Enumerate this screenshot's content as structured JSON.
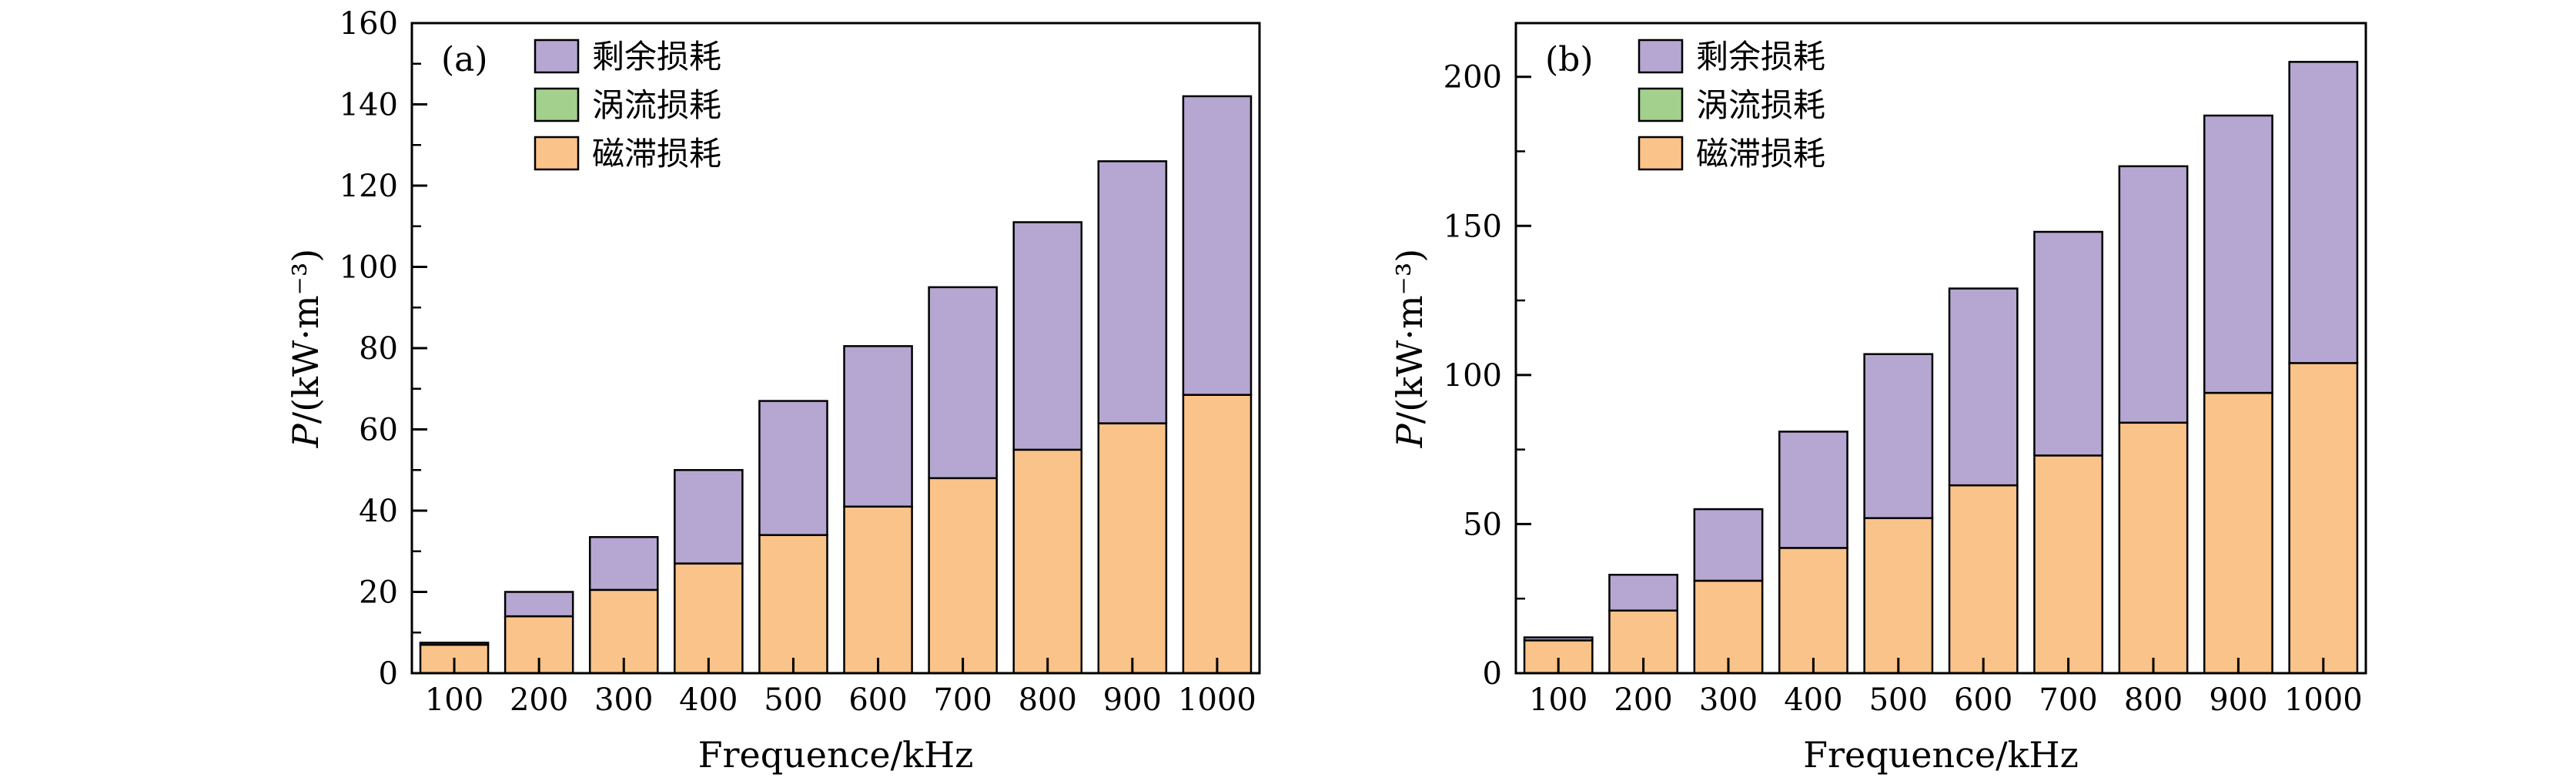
{
  "figure": {
    "background": "#ffffff",
    "bar_edge_color": "#000000",
    "axis_color": "#000000"
  },
  "chart_data": [
    {
      "type": "bar",
      "stacked": true,
      "panel_label": "(a)",
      "xlabel": "Frequence/kHz",
      "ylabel": "P/(kW·m⁻³)",
      "ylabel_italic": "P",
      "ylabel_rest": "/(kW·m⁻³)",
      "categories": [
        100,
        200,
        300,
        400,
        500,
        600,
        700,
        800,
        900,
        1000
      ],
      "ylim": [
        0,
        160
      ],
      "ytick_step": 20,
      "ytick_labels": [
        "0",
        "20",
        "40",
        "60",
        "80",
        "100",
        "120",
        "140",
        "160"
      ],
      "legend_position": "top-left",
      "legend_order": [
        "剩余损耗",
        "涡流损耗",
        "磁滞损耗"
      ],
      "series": [
        {
          "name": "磁滞损耗",
          "color": "#FAC389",
          "values": [
            7,
            14,
            20.5,
            27,
            34,
            41,
            48,
            55,
            61.5,
            68.5
          ]
        },
        {
          "name": "涡流损耗",
          "color": "#A4D08E",
          "values": [
            0,
            0,
            0,
            0,
            0,
            0,
            0,
            0,
            0,
            0
          ]
        },
        {
          "name": "剩余损耗",
          "color": "#B5A7D1",
          "values": [
            0.5,
            6,
            13,
            23,
            33,
            39.5,
            47,
            56,
            64.5,
            73.5
          ]
        }
      ]
    },
    {
      "type": "bar",
      "stacked": true,
      "panel_label": "(b)",
      "xlabel": "Frequence/kHz",
      "ylabel": "P/(kW·m⁻³)",
      "ylabel_italic": "P",
      "ylabel_rest": "/(kW·m⁻³)",
      "categories": [
        100,
        200,
        300,
        400,
        500,
        600,
        700,
        800,
        900,
        1000
      ],
      "ylim": [
        0,
        218
      ],
      "ytick_step": 50,
      "ytick_labels": [
        "0",
        "50",
        "100",
        "150",
        "200"
      ],
      "legend_position": "top-left",
      "legend_order": [
        "剩余损耗",
        "涡流损耗",
        "磁滞损耗"
      ],
      "series": [
        {
          "name": "磁滞损耗",
          "color": "#FAC389",
          "values": [
            11,
            21,
            31,
            42,
            52,
            63,
            73,
            84,
            94,
            104
          ]
        },
        {
          "name": "涡流损耗",
          "color": "#A4D08E",
          "values": [
            0,
            0,
            0,
            0,
            0,
            0,
            0,
            0,
            0,
            0
          ]
        },
        {
          "name": "剩余损耗",
          "color": "#B5A7D1",
          "values": [
            1,
            12,
            24,
            39,
            55,
            66,
            75,
            86,
            93,
            101
          ]
        }
      ]
    }
  ]
}
